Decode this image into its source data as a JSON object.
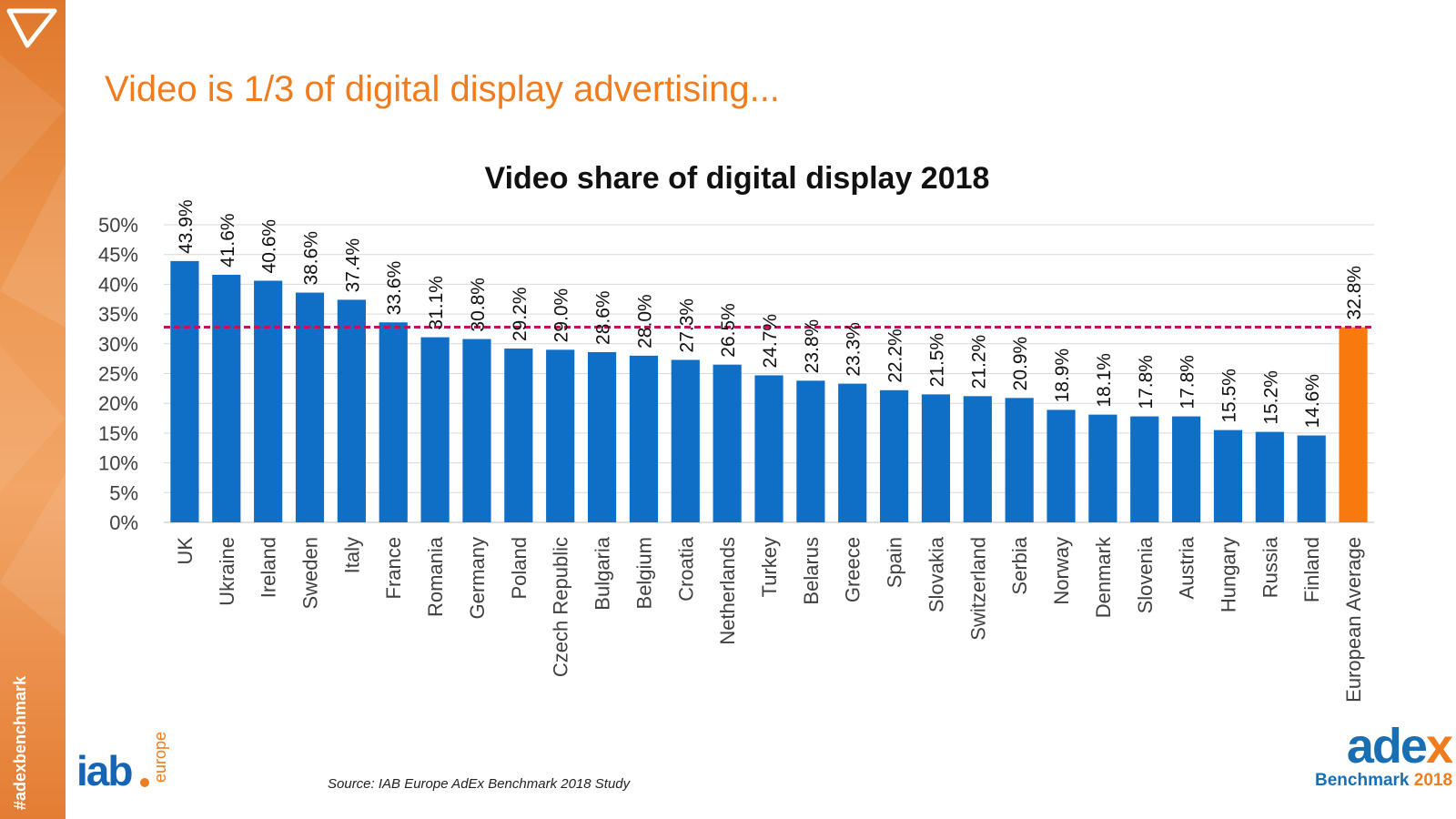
{
  "slide": {
    "title": "Video is 1/3 of digital display advertising...",
    "hashtag": "#adexbenchmark",
    "source": "Source: IAB Europe AdEx Benchmark 2018 Study"
  },
  "logos": {
    "iab": "iab",
    "iab_sub": "europe",
    "adex": "ade",
    "adex_x": "x",
    "adex_sub": "Benchmark",
    "adex_year": "2018"
  },
  "colors": {
    "accent": "#f07c1e",
    "bar": "#0f6fc6",
    "average_bar": "#f87a0e",
    "average_line": "#c0135a"
  },
  "chart_data": {
    "type": "bar",
    "title": "Video share of digital display 2018",
    "xlabel": "",
    "ylabel": "",
    "ylim": [
      0,
      50
    ],
    "yticks": [
      "0%",
      "5%",
      "10%",
      "15%",
      "20%",
      "25%",
      "30%",
      "35%",
      "40%",
      "45%",
      "50%"
    ],
    "grid": true,
    "categories": [
      "UK",
      "Ukraine",
      "Ireland",
      "Sweden",
      "Italy",
      "France",
      "Romania",
      "Germany",
      "Poland",
      "Czech Republic",
      "Bulgaria",
      "Belgium",
      "Croatia",
      "Netherlands",
      "Turkey",
      "Belarus",
      "Greece",
      "Spain",
      "Slovakia",
      "Switzerland",
      "Serbia",
      "Norway",
      "Denmark",
      "Slovenia",
      "Austria",
      "Hungary",
      "Russia",
      "Finland",
      "European Average"
    ],
    "values": [
      43.9,
      41.6,
      40.6,
      38.6,
      37.4,
      33.6,
      31.1,
      30.8,
      29.2,
      29.0,
      28.6,
      28.0,
      27.3,
      26.5,
      24.7,
      23.8,
      23.3,
      22.2,
      21.5,
      21.2,
      20.9,
      18.9,
      18.1,
      17.8,
      17.8,
      15.5,
      15.2,
      14.6,
      32.8
    ],
    "labels": [
      "43.9%",
      "41.6%",
      "40.6%",
      "38.6%",
      "37.4%",
      "33.6%",
      "31.1%",
      "30.8%",
      "29.2%",
      "29.0%",
      "28.6%",
      "28.0%",
      "27.3%",
      "26.5%",
      "24.7%",
      "23.8%",
      "23.3%",
      "22.2%",
      "21.5%",
      "21.2%",
      "20.9%",
      "18.9%",
      "18.1%",
      "17.8%",
      "17.8%",
      "15.5%",
      "15.2%",
      "14.6%",
      "32.8%"
    ],
    "highlight_category": "European Average",
    "reference_line": {
      "value": 32.8,
      "style": "dashed"
    }
  }
}
